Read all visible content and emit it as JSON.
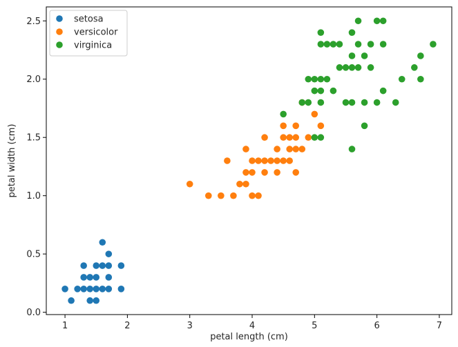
{
  "chart_data": {
    "type": "scatter",
    "title": "",
    "xlabel": "petal length (cm)",
    "ylabel": "petal width (cm)",
    "xlim": [
      0.7,
      7.2
    ],
    "ylim": [
      -0.02,
      2.62
    ],
    "xticks": [
      1,
      2,
      3,
      4,
      5,
      6,
      7
    ],
    "yticks": [
      0.0,
      0.5,
      1.0,
      1.5,
      2.0,
      2.5
    ],
    "grid": false,
    "legend_position": "top-left",
    "series": [
      {
        "name": "setosa",
        "color": "#1f77b4",
        "points": [
          [
            1.0,
            0.2
          ],
          [
            1.1,
            0.1
          ],
          [
            1.2,
            0.2
          ],
          [
            1.3,
            0.2
          ],
          [
            1.3,
            0.3
          ],
          [
            1.3,
            0.4
          ],
          [
            1.4,
            0.1
          ],
          [
            1.4,
            0.2
          ],
          [
            1.4,
            0.3
          ],
          [
            1.5,
            0.1
          ],
          [
            1.5,
            0.2
          ],
          [
            1.5,
            0.3
          ],
          [
            1.5,
            0.4
          ],
          [
            1.6,
            0.2
          ],
          [
            1.6,
            0.4
          ],
          [
            1.6,
            0.6
          ],
          [
            1.7,
            0.2
          ],
          [
            1.7,
            0.3
          ],
          [
            1.7,
            0.4
          ],
          [
            1.7,
            0.5
          ],
          [
            1.9,
            0.2
          ],
          [
            1.9,
            0.4
          ]
        ]
      },
      {
        "name": "versicolor",
        "color": "#ff7f0e",
        "points": [
          [
            3.0,
            1.1
          ],
          [
            3.3,
            1.0
          ],
          [
            3.5,
            1.0
          ],
          [
            3.6,
            1.3
          ],
          [
            3.7,
            1.0
          ],
          [
            3.8,
            1.1
          ],
          [
            3.9,
            1.1
          ],
          [
            3.9,
            1.2
          ],
          [
            3.9,
            1.4
          ],
          [
            4.0,
            1.0
          ],
          [
            4.0,
            1.2
          ],
          [
            4.0,
            1.3
          ],
          [
            4.1,
            1.0
          ],
          [
            4.1,
            1.3
          ],
          [
            4.2,
            1.2
          ],
          [
            4.2,
            1.3
          ],
          [
            4.2,
            1.5
          ],
          [
            4.3,
            1.3
          ],
          [
            4.4,
            1.2
          ],
          [
            4.4,
            1.3
          ],
          [
            4.4,
            1.4
          ],
          [
            4.5,
            1.3
          ],
          [
            4.5,
            1.5
          ],
          [
            4.5,
            1.6
          ],
          [
            4.6,
            1.3
          ],
          [
            4.6,
            1.4
          ],
          [
            4.6,
            1.5
          ],
          [
            4.7,
            1.2
          ],
          [
            4.7,
            1.4
          ],
          [
            4.7,
            1.5
          ],
          [
            4.7,
            1.6
          ],
          [
            4.8,
            1.4
          ],
          [
            4.8,
            1.8
          ],
          [
            4.9,
            1.5
          ],
          [
            5.0,
            1.7
          ],
          [
            5.1,
            1.6
          ]
        ]
      },
      {
        "name": "virginica",
        "color": "#2ca02c",
        "points": [
          [
            4.5,
            1.7
          ],
          [
            4.8,
            1.8
          ],
          [
            4.9,
            1.8
          ],
          [
            4.9,
            2.0
          ],
          [
            5.0,
            1.5
          ],
          [
            5.0,
            1.9
          ],
          [
            5.0,
            2.0
          ],
          [
            5.1,
            1.5
          ],
          [
            5.1,
            1.8
          ],
          [
            5.1,
            1.9
          ],
          [
            5.1,
            2.0
          ],
          [
            5.1,
            2.3
          ],
          [
            5.1,
            2.4
          ],
          [
            5.2,
            2.0
          ],
          [
            5.2,
            2.3
          ],
          [
            5.3,
            1.9
          ],
          [
            5.3,
            2.3
          ],
          [
            5.4,
            2.1
          ],
          [
            5.4,
            2.3
          ],
          [
            5.5,
            1.8
          ],
          [
            5.5,
            2.1
          ],
          [
            5.6,
            1.4
          ],
          [
            5.6,
            1.8
          ],
          [
            5.6,
            2.1
          ],
          [
            5.6,
            2.2
          ],
          [
            5.6,
            2.4
          ],
          [
            5.7,
            2.1
          ],
          [
            5.7,
            2.3
          ],
          [
            5.7,
            2.5
          ],
          [
            5.8,
            1.6
          ],
          [
            5.8,
            1.8
          ],
          [
            5.8,
            2.2
          ],
          [
            5.9,
            2.1
          ],
          [
            5.9,
            2.3
          ],
          [
            6.0,
            1.8
          ],
          [
            6.0,
            2.5
          ],
          [
            6.1,
            1.9
          ],
          [
            6.1,
            2.3
          ],
          [
            6.1,
            2.5
          ],
          [
            6.3,
            1.8
          ],
          [
            6.4,
            2.0
          ],
          [
            6.6,
            2.1
          ],
          [
            6.7,
            2.0
          ],
          [
            6.7,
            2.2
          ],
          [
            6.9,
            2.3
          ]
        ]
      }
    ]
  }
}
